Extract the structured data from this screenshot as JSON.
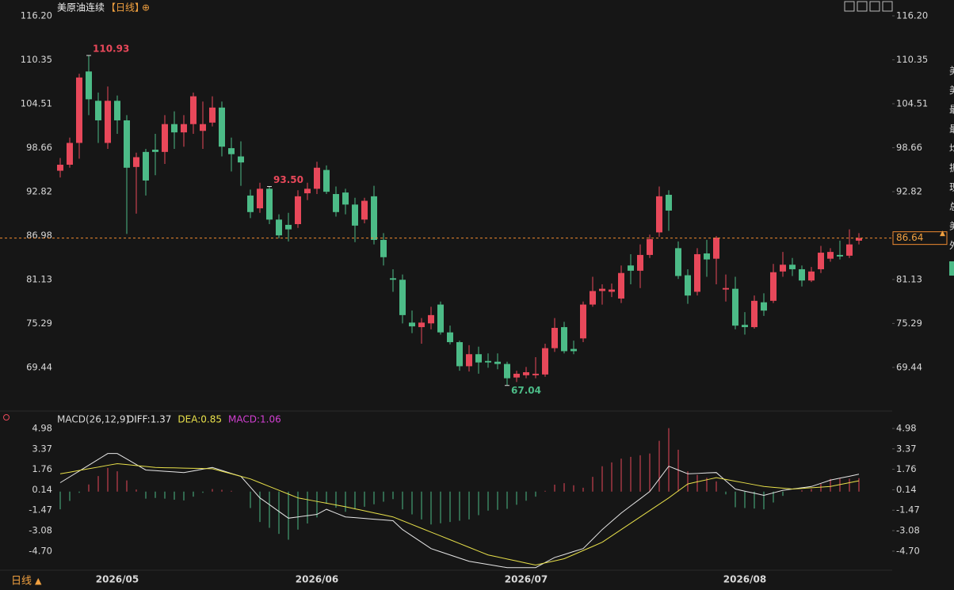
{
  "chart_data": [
    {
      "type": "candlestick",
      "title": "美原油连续",
      "period": "【日线】",
      "title_icon": "⊕",
      "categories": [
        null,
        null,
        null,
        null,
        null,
        null,
        "2026/05",
        null,
        null,
        null,
        null,
        null,
        null,
        null,
        null,
        null,
        null,
        null,
        null,
        null,
        null,
        null,
        null,
        null,
        null,
        null,
        null,
        "2026/06",
        null,
        null,
        null,
        null,
        null,
        null,
        null,
        null,
        null,
        null,
        null,
        null,
        null,
        null,
        null,
        null,
        null,
        null,
        null,
        null,
        null,
        "2026/07",
        null,
        null,
        null,
        null,
        null,
        null,
        null,
        null,
        null,
        null,
        null,
        null,
        null,
        null,
        null,
        null,
        null,
        null,
        null,
        null,
        null,
        null,
        "2026/08",
        null,
        null,
        null,
        null,
        null,
        null,
        null,
        null,
        null,
        null,
        null,
        null
      ],
      "open": [
        95.6,
        96.4,
        99.3,
        108.8,
        104.9,
        99.3,
        104.9,
        102.3,
        96.1,
        98.1,
        98.4,
        98.1,
        101.8,
        100.7,
        101.8,
        100.9,
        102.0,
        104.0,
        98.6,
        97.5,
        92.3,
        90.6,
        93.2,
        89.1,
        88.4,
        88.5,
        92.6,
        93.2,
        95.7,
        92.5,
        92.7,
        91.1,
        89.1,
        92.2,
        86.4,
        81.3,
        81.1,
        75.4,
        74.8,
        75.3,
        77.8,
        74.1,
        72.8,
        69.6,
        71.2,
        70.3,
        70.2,
        69.9,
        68.1,
        68.4,
        68.4,
        68.5,
        72.0,
        74.8,
        71.9,
        73.3,
        77.8,
        79.6,
        79.5,
        78.6,
        83.0,
        82.3,
        84.4,
        87.4,
        92.4,
        85.3,
        81.7,
        79.5,
        84.6,
        83.9,
        79.8,
        79.9,
        75.1,
        74.8,
        78.1,
        78.3,
        82.2,
        83.1,
        82.5,
        81.0,
        82.5,
        83.9,
        84.4,
        84.3,
        86.3
      ],
      "high": [
        97.3,
        100.0,
        108.5,
        110.93,
        106.0,
        106.8,
        105.6,
        103.0,
        98.0,
        98.5,
        100.5,
        103.0,
        103.5,
        103.0,
        106.0,
        104.8,
        105.5,
        104.8,
        100.0,
        99.5,
        93.1,
        94.0,
        93.5,
        89.8,
        90.0,
        93.0,
        94.0,
        96.8,
        96.3,
        93.5,
        93.2,
        92.0,
        92.0,
        93.6,
        87.3,
        82.5,
        81.8,
        77.0,
        76.0,
        77.5,
        78.2,
        75.0,
        73.0,
        72.4,
        72.2,
        71.3,
        71.3,
        70.2,
        69.0,
        69.5,
        70.8,
        72.6,
        76.0,
        75.5,
        73.0,
        78.2,
        81.5,
        80.5,
        80.6,
        83.0,
        84.5,
        85.8,
        87.1,
        93.5,
        93.0,
        86.2,
        82.5,
        85.3,
        86.4,
        86.9,
        81.8,
        81.5,
        76.8,
        79.0,
        79.3,
        83.2,
        84.8,
        84.0,
        83.0,
        82.8,
        85.6,
        85.3,
        86.3,
        87.8,
        87.3
      ],
      "low": [
        94.7,
        96.0,
        97.2,
        103.0,
        99.3,
        98.5,
        100.5,
        87.2,
        89.9,
        92.3,
        95.0,
        96.5,
        98.5,
        98.8,
        100.5,
        98.5,
        101.5,
        97.5,
        95.5,
        93.6,
        89.3,
        90.0,
        88.5,
        86.6,
        86.2,
        88.0,
        91.7,
        92.5,
        92.5,
        89.5,
        89.8,
        86.1,
        88.6,
        85.8,
        83.0,
        79.5,
        75.3,
        74.0,
        72.6,
        74.5,
        73.8,
        72.5,
        69.0,
        68.9,
        68.6,
        69.4,
        69.2,
        67.04,
        67.5,
        68.0,
        68.0,
        68.2,
        71.5,
        71.3,
        71.2,
        72.8,
        77.5,
        77.8,
        78.8,
        78.0,
        80.5,
        80.0,
        84.0,
        86.8,
        87.6,
        81.2,
        77.9,
        79.0,
        81.5,
        80.5,
        78.2,
        74.5,
        73.8,
        74.6,
        76.3,
        78.0,
        81.5,
        81.6,
        80.2,
        80.8,
        82.0,
        83.5,
        83.8,
        84.0,
        85.8
      ],
      "close": [
        96.4,
        99.3,
        108.0,
        105.1,
        102.3,
        104.9,
        102.3,
        96.0,
        97.4,
        94.3,
        98.1,
        101.8,
        100.7,
        101.8,
        105.5,
        101.8,
        104.0,
        98.8,
        97.8,
        96.7,
        90.1,
        93.2,
        89.1,
        87.0,
        87.8,
        92.2,
        93.2,
        96.0,
        92.8,
        90.1,
        91.1,
        88.3,
        91.6,
        86.4,
        84.1,
        81.1,
        76.4,
        74.9,
        75.4,
        76.4,
        74.1,
        72.8,
        69.6,
        71.2,
        70.1,
        70.1,
        69.9,
        68.0,
        68.6,
        68.8,
        68.6,
        72.0,
        74.7,
        71.6,
        71.6,
        77.8,
        79.6,
        79.9,
        79.8,
        82.0,
        82.3,
        84.4,
        86.5,
        92.2,
        90.3,
        81.6,
        79.0,
        84.5,
        83.8,
        86.7,
        80.0,
        75.0,
        74.8,
        78.3,
        77.0,
        82.1,
        83.1,
        82.5,
        81.0,
        82.2,
        84.7,
        84.8,
        84.2,
        85.8,
        86.64
      ],
      "up_color": "#e8485a",
      "down_color": "#4cbb87",
      "annotations": [
        {
          "value": 110.93,
          "label": "110.93"
        },
        {
          "value": 93.5,
          "label": "93.50"
        },
        {
          "value": 67.04,
          "label": "67.04"
        }
      ],
      "last_price": 86.64,
      "ylim": [
        64.59,
        116.2
      ],
      "yticks": [
        {
          "value": 116.2,
          "label": "116.20"
        },
        110.35,
        104.51,
        98.66,
        92.82,
        86.98,
        81.13,
        75.29,
        69.44
      ]
    },
    {
      "type": "macd",
      "title": "MACD(26,12,9)",
      "series": [
        {
          "name": "DIFF:1.37",
          "color": "#e6e6e6",
          "values": [
            0.7,
            1.16,
            1.62,
            2.08,
            2.54,
            3.0,
            3.0,
            2.57,
            2.13,
            1.7,
            1.65,
            1.6,
            1.55,
            1.5,
            1.63,
            1.77,
            1.9,
            1.67,
            1.43,
            1.2,
            0.35,
            -0.5,
            -1.03,
            -1.57,
            -2.1,
            -2.0,
            -1.9,
            -1.8,
            -1.4,
            -1.7,
            -2.0,
            -2.06,
            -2.12,
            -2.18,
            -2.24,
            -2.3,
            -3.0,
            -3.5,
            -4.0,
            -4.5,
            -4.75,
            -5.0,
            -5.25,
            -5.5,
            -5.63,
            -5.75,
            -5.88,
            -6.0,
            -6.0,
            -6.0,
            -6.0,
            -5.6,
            -5.2,
            -4.97,
            -4.73,
            -4.5,
            -3.75,
            -3.0,
            -2.35,
            -1.7,
            -1.13,
            -0.57,
            0,
            1.0,
            2.0,
            1.7,
            1.4,
            1.43,
            1.47,
            1.5,
            0.85,
            0.2,
            0.03,
            -0.13,
            -0.3,
            -0.1,
            0.1,
            0.2,
            0.3,
            0.4,
            0.65,
            0.9,
            1.06,
            1.21,
            1.37
          ]
        },
        {
          "name": "DEA:0.85",
          "color": "#e8e04a",
          "values": [
            1.4,
            1.53,
            1.67,
            1.8,
            1.93,
            2.07,
            2.2,
            2.13,
            2.05,
            1.98,
            1.9,
            1.88,
            1.87,
            1.85,
            1.83,
            1.82,
            1.8,
            1.6,
            1.4,
            1.2,
            1.0,
            0.7,
            0.4,
            0.1,
            -0.2,
            -0.5,
            -0.64,
            -0.78,
            -0.92,
            -1.06,
            -1.2,
            -1.36,
            -1.52,
            -1.68,
            -1.84,
            -2.0,
            -2.3,
            -2.6,
            -2.9,
            -3.2,
            -3.5,
            -3.8,
            -4.1,
            -4.4,
            -4.7,
            -5.0,
            -5.16,
            -5.32,
            -5.48,
            -5.64,
            -5.8,
            -5.63,
            -5.47,
            -5.3,
            -4.98,
            -4.65,
            -4.33,
            -4.0,
            -3.5,
            -3.0,
            -2.5,
            -2.0,
            -1.5,
            -1.0,
            -0.5,
            0.05,
            0.6,
            0.77,
            0.93,
            1.1,
            0.96,
            0.82,
            0.68,
            0.54,
            0.4,
            0.33,
            0.27,
            0.2,
            0.25,
            0.3,
            0.35,
            0.4,
            0.55,
            0.7,
            0.85
          ]
        },
        {
          "name": "MACD:1.06",
          "color": "#d23fd2",
          "values": [
            -1.4,
            -0.74,
            -0.1,
            0.56,
            1.22,
            1.86,
            1.6,
            0.88,
            0.16,
            -0.56,
            -0.5,
            -0.56,
            -0.64,
            -0.7,
            -0.4,
            -0.1,
            0.2,
            0.14,
            0.06,
            0,
            -1.3,
            -2.4,
            -2.86,
            -3.34,
            -3.8,
            -3.0,
            -2.52,
            -2.04,
            -0.96,
            -1.28,
            -1.6,
            -1.4,
            -1.2,
            -1.0,
            -0.8,
            -0.6,
            -1.4,
            -1.8,
            -2.2,
            -2.6,
            -2.5,
            -2.4,
            -2.3,
            -2.2,
            -1.86,
            -1.5,
            -1.44,
            -1.36,
            -1.04,
            -0.72,
            -0.4,
            0.06,
            0.54,
            0.66,
            0.5,
            0.3,
            1.16,
            2.0,
            2.3,
            2.6,
            2.74,
            2.86,
            3.0,
            4.0,
            5.0,
            3.3,
            1.6,
            1.32,
            1.08,
            0.8,
            -0.22,
            -1.24,
            -1.3,
            -1.34,
            -1.4,
            -0.86,
            -0.34,
            0,
            0.1,
            0.2,
            0.6,
            1.0,
            1.02,
            1.02,
            1.06
          ]
        }
      ],
      "ylim": [
        -6.08,
        4.98
      ],
      "yticks": [
        4.98,
        3.37,
        1.76,
        0.14,
        -1.47,
        -3.08,
        {
          "value": -4.7,
          "label": "-4.70"
        }
      ]
    }
  ],
  "footer": {
    "period": "日线",
    "arrow": "▲"
  },
  "side_panel": [
    "美",
    "美",
    "最",
    "最",
    "均",
    "振",
    "现",
    "总",
    "美",
    "外"
  ]
}
